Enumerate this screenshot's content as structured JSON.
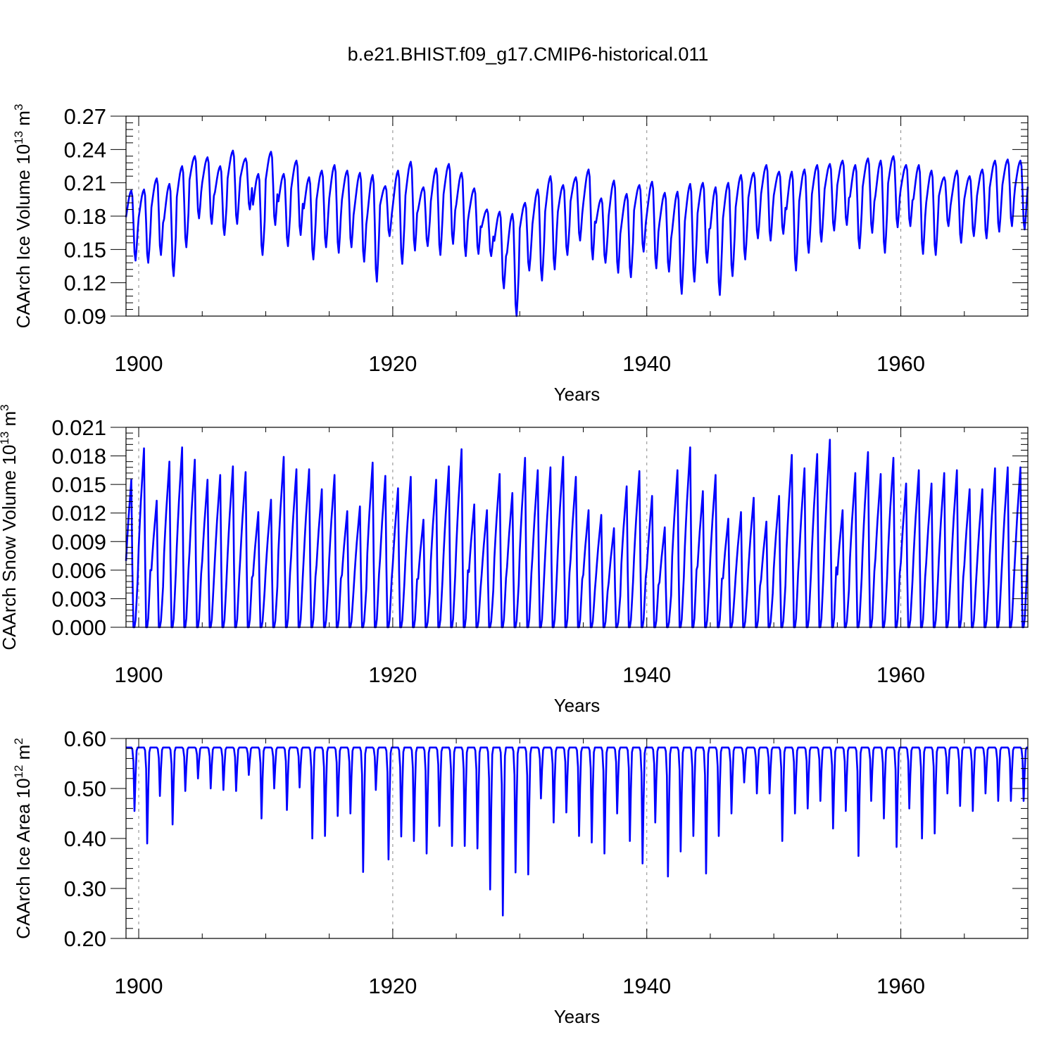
{
  "title": "b.e21.BHIST.f09_g17.CMIP6-historical.011",
  "colors": {
    "series": "#0000ff",
    "axis": "#000000",
    "grid": "#888888"
  },
  "chart_data": [
    {
      "type": "line",
      "title": "",
      "xlabel": "Years",
      "ylabel": "CAArch Ice Volume 10",
      "ylabel_exponent": "13",
      "ylabel_unit": "m",
      "ylabel_unit_exponent": "3",
      "xlim": [
        1899.0,
        1970.0
      ],
      "ylim": [
        0.09,
        0.27
      ],
      "xticks": [
        1900,
        1920,
        1940,
        1960
      ],
      "xtick_labels": [
        "1900",
        "1920",
        "1940",
        "1960"
      ],
      "yticks": [
        0.09,
        0.12,
        0.15,
        0.18,
        0.21,
        0.24,
        0.27
      ],
      "ytick_labels": [
        "0.09",
        "0.12",
        "0.15",
        "0.18",
        "0.21",
        "0.24",
        "0.27"
      ],
      "grid": "vertical dashed at 1900, 1920, 1940, 1960",
      "series": [
        {
          "name": "CAArch Ice Volume",
          "sampling": "annual cycle minimum and maximum, 1899-1969",
          "years": [
            1899,
            1900,
            1901,
            1902,
            1903,
            1904,
            1905,
            1906,
            1907,
            1908,
            1909,
            1910,
            1911,
            1912,
            1913,
            1914,
            1915,
            1916,
            1917,
            1918,
            1919,
            1920,
            1921,
            1922,
            1923,
            1924,
            1925,
            1926,
            1927,
            1928,
            1929,
            1930,
            1931,
            1932,
            1933,
            1934,
            1935,
            1936,
            1937,
            1938,
            1939,
            1940,
            1941,
            1942,
            1943,
            1944,
            1945,
            1946,
            1947,
            1948,
            1949,
            1950,
            1951,
            1952,
            1953,
            1954,
            1955,
            1956,
            1957,
            1958,
            1959,
            1960,
            1961,
            1962,
            1963,
            1964,
            1965,
            1966,
            1967,
            1968,
            1969
          ],
          "min": [
            0.14,
            0.138,
            0.145,
            0.126,
            0.152,
            0.178,
            0.173,
            0.163,
            0.173,
            0.186,
            0.145,
            0.172,
            0.153,
            0.163,
            0.141,
            0.152,
            0.147,
            0.152,
            0.139,
            0.121,
            0.162,
            0.137,
            0.149,
            0.153,
            0.145,
            0.155,
            0.144,
            0.146,
            0.144,
            0.115,
            0.09,
            0.131,
            0.122,
            0.132,
            0.145,
            0.158,
            0.141,
            0.138,
            0.129,
            0.125,
            0.148,
            0.133,
            0.13,
            0.11,
            0.121,
            0.138,
            0.109,
            0.126,
            0.141,
            0.16,
            0.158,
            0.164,
            0.131,
            0.147,
            0.157,
            0.167,
            0.172,
            0.151,
            0.165,
            0.147,
            0.17,
            0.171,
            0.146,
            0.145,
            0.171,
            0.156,
            0.162,
            0.16,
            0.166,
            0.171,
            0.168
          ],
          "max": [
            0.203,
            0.204,
            0.214,
            0.209,
            0.225,
            0.234,
            0.233,
            0.225,
            0.239,
            0.232,
            0.218,
            0.238,
            0.218,
            0.23,
            0.215,
            0.221,
            0.226,
            0.221,
            0.219,
            0.217,
            0.207,
            0.221,
            0.229,
            0.206,
            0.223,
            0.227,
            0.219,
            0.205,
            0.186,
            0.184,
            0.182,
            0.192,
            0.204,
            0.216,
            0.208,
            0.215,
            0.222,
            0.196,
            0.212,
            0.2,
            0.208,
            0.211,
            0.201,
            0.202,
            0.209,
            0.21,
            0.206,
            0.21,
            0.217,
            0.219,
            0.226,
            0.22,
            0.22,
            0.222,
            0.226,
            0.227,
            0.23,
            0.226,
            0.232,
            0.23,
            0.234,
            0.226,
            0.226,
            0.221,
            0.215,
            0.221,
            0.216,
            0.222,
            0.23,
            0.231,
            0.23
          ]
        }
      ]
    },
    {
      "type": "line",
      "title": "",
      "xlabel": "Years",
      "ylabel": "CAArch Snow Volume 10",
      "ylabel_exponent": "13",
      "ylabel_unit": "m",
      "ylabel_unit_exponent": "3",
      "xlim": [
        1899.0,
        1970.0
      ],
      "ylim": [
        0.0,
        0.021
      ],
      "xticks": [
        1900,
        1920,
        1940,
        1960
      ],
      "xtick_labels": [
        "1900",
        "1920",
        "1940",
        "1960"
      ],
      "yticks": [
        0.0,
        0.003,
        0.006,
        0.009,
        0.012,
        0.015,
        0.018,
        0.021
      ],
      "ytick_labels": [
        "0.000",
        "0.003",
        "0.006",
        "0.009",
        "0.012",
        "0.015",
        "0.018",
        "0.021"
      ],
      "grid": "vertical dashed at 1900, 1920, 1940, 1960",
      "series": [
        {
          "name": "CAArch Snow Volume",
          "sampling": "annual cycle minimum and maximum, 1899-1969",
          "years": [
            1899,
            1900,
            1901,
            1902,
            1903,
            1904,
            1905,
            1906,
            1907,
            1908,
            1909,
            1910,
            1911,
            1912,
            1913,
            1914,
            1915,
            1916,
            1917,
            1918,
            1919,
            1920,
            1921,
            1922,
            1923,
            1924,
            1925,
            1926,
            1927,
            1928,
            1929,
            1930,
            1931,
            1932,
            1933,
            1934,
            1935,
            1936,
            1937,
            1938,
            1939,
            1940,
            1941,
            1942,
            1943,
            1944,
            1945,
            1946,
            1947,
            1948,
            1949,
            1950,
            1951,
            1952,
            1953,
            1954,
            1955,
            1956,
            1957,
            1958,
            1959,
            1960,
            1961,
            1962,
            1963,
            1964,
            1965,
            1966,
            1967,
            1968,
            1969
          ],
          "min": [
            0.0,
            0.0,
            0.0,
            0.0,
            0.0,
            0.0,
            0.0,
            0.0,
            0.0,
            0.0,
            0.0,
            0.0,
            0.0,
            0.0,
            0.0,
            0.0,
            0.0,
            0.0,
            0.0,
            0.0,
            0.0,
            0.0,
            0.0,
            0.0,
            0.0,
            0.0,
            0.0,
            0.0,
            0.0,
            0.0,
            0.0,
            0.0,
            0.0,
            0.0,
            0.0,
            0.0,
            0.0,
            0.0,
            0.0,
            0.0,
            0.0,
            0.0,
            0.0,
            0.0,
            0.0,
            0.0,
            0.0,
            0.0,
            0.0,
            0.0,
            0.0,
            0.0,
            0.0,
            0.0,
            0.0,
            0.0,
            0.0,
            0.0,
            0.0,
            0.0,
            0.0,
            0.0,
            0.0,
            0.0,
            0.0,
            0.0,
            0.0,
            0.0,
            0.0,
            0.0,
            0.0
          ],
          "max": [
            0.0155,
            0.0188,
            0.0133,
            0.0174,
            0.0189,
            0.0176,
            0.0155,
            0.016,
            0.0169,
            0.0163,
            0.0121,
            0.0134,
            0.0179,
            0.0166,
            0.0166,
            0.0145,
            0.016,
            0.0122,
            0.0127,
            0.0173,
            0.0159,
            0.0146,
            0.0158,
            0.0113,
            0.0155,
            0.0169,
            0.0187,
            0.0129,
            0.0123,
            0.0161,
            0.0141,
            0.0178,
            0.0165,
            0.0168,
            0.0179,
            0.0158,
            0.0123,
            0.0118,
            0.0104,
            0.0148,
            0.0164,
            0.0138,
            0.0105,
            0.0165,
            0.0189,
            0.0143,
            0.016,
            0.0114,
            0.0121,
            0.0136,
            0.0111,
            0.0138,
            0.0181,
            0.0167,
            0.0182,
            0.0197,
            0.0123,
            0.0162,
            0.0184,
            0.0161,
            0.0178,
            0.0151,
            0.0165,
            0.0151,
            0.0162,
            0.0165,
            0.0145,
            0.0145,
            0.0167,
            0.0168,
            0.0168
          ]
        }
      ]
    },
    {
      "type": "line",
      "title": "",
      "xlabel": "Years",
      "ylabel": "CAArch Ice Area 10",
      "ylabel_exponent": "12",
      "ylabel_unit": "m",
      "ylabel_unit_exponent": "2",
      "xlim": [
        1899.0,
        1970.0
      ],
      "ylim": [
        0.2,
        0.6
      ],
      "xticks": [
        1900,
        1920,
        1940,
        1960
      ],
      "xtick_labels": [
        "1900",
        "1920",
        "1940",
        "1960"
      ],
      "yticks": [
        0.2,
        0.3,
        0.4,
        0.5,
        0.6
      ],
      "ytick_labels": [
        "0.20",
        "0.30",
        "0.40",
        "0.50",
        "0.60"
      ],
      "grid": "vertical dashed at 1900, 1920, 1940, 1960",
      "series": [
        {
          "name": "CAArch Ice Area",
          "sampling": "annual cycle plateau and minimum, 1899-1969",
          "years": [
            1899,
            1900,
            1901,
            1902,
            1903,
            1904,
            1905,
            1906,
            1907,
            1908,
            1909,
            1910,
            1911,
            1912,
            1913,
            1914,
            1915,
            1916,
            1917,
            1918,
            1919,
            1920,
            1921,
            1922,
            1923,
            1924,
            1925,
            1926,
            1927,
            1928,
            1929,
            1930,
            1931,
            1932,
            1933,
            1934,
            1935,
            1936,
            1937,
            1938,
            1939,
            1940,
            1941,
            1942,
            1943,
            1944,
            1945,
            1946,
            1947,
            1948,
            1949,
            1950,
            1951,
            1952,
            1953,
            1954,
            1955,
            1956,
            1957,
            1958,
            1959,
            1960,
            1961,
            1962,
            1963,
            1964,
            1965,
            1966,
            1967,
            1968,
            1969
          ],
          "max": [
            0.582,
            0.582,
            0.582,
            0.582,
            0.582,
            0.582,
            0.582,
            0.582,
            0.582,
            0.582,
            0.582,
            0.582,
            0.582,
            0.582,
            0.582,
            0.582,
            0.582,
            0.582,
            0.582,
            0.582,
            0.582,
            0.582,
            0.582,
            0.582,
            0.582,
            0.582,
            0.582,
            0.582,
            0.582,
            0.582,
            0.582,
            0.582,
            0.582,
            0.582,
            0.582,
            0.582,
            0.582,
            0.582,
            0.582,
            0.582,
            0.582,
            0.582,
            0.582,
            0.582,
            0.582,
            0.582,
            0.582,
            0.582,
            0.582,
            0.582,
            0.582,
            0.582,
            0.582,
            0.582,
            0.582,
            0.582,
            0.582,
            0.582,
            0.582,
            0.582,
            0.582,
            0.582,
            0.582,
            0.582,
            0.582,
            0.582,
            0.582,
            0.582,
            0.582,
            0.582,
            0.582
          ],
          "min": [
            0.455,
            0.39,
            0.485,
            0.428,
            0.495,
            0.52,
            0.5,
            0.497,
            0.495,
            0.527,
            0.44,
            0.5,
            0.457,
            0.502,
            0.4,
            0.405,
            0.445,
            0.45,
            0.333,
            0.497,
            0.358,
            0.404,
            0.395,
            0.37,
            0.425,
            0.385,
            0.385,
            0.38,
            0.298,
            0.246,
            0.332,
            0.328,
            0.48,
            0.432,
            0.452,
            0.405,
            0.392,
            0.37,
            0.45,
            0.395,
            0.35,
            0.432,
            0.324,
            0.374,
            0.405,
            0.33,
            0.405,
            0.45,
            0.512,
            0.49,
            0.49,
            0.395,
            0.45,
            0.46,
            0.475,
            0.42,
            0.455,
            0.365,
            0.475,
            0.44,
            0.383,
            0.46,
            0.4,
            0.41,
            0.49,
            0.465,
            0.455,
            0.49,
            0.475,
            0.475,
            0.475
          ]
        }
      ]
    }
  ]
}
